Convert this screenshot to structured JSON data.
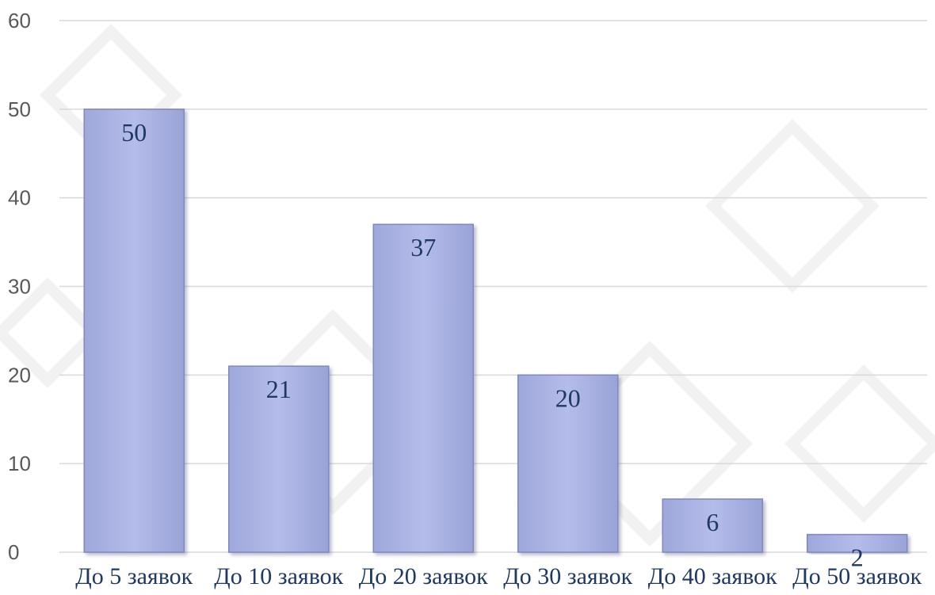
{
  "chart_data": {
    "type": "bar",
    "categories": [
      "До 5 заявок",
      "До 10 заявок",
      "До 20 заявок",
      "До 30 заявок",
      "До 40 заявок",
      "До 50 заявок"
    ],
    "values": [
      50,
      21,
      37,
      20,
      6,
      2
    ],
    "data_labels": [
      "50",
      "21",
      "37",
      "20",
      "6",
      "2"
    ],
    "title": "",
    "xlabel": "",
    "ylabel": "",
    "ylim": [
      0,
      60
    ],
    "yticks": [
      "0",
      "10",
      "20",
      "30",
      "40",
      "50",
      "60"
    ],
    "ytick_values": [
      0,
      10,
      20,
      30,
      40,
      50,
      60
    ],
    "grid": true,
    "legend": "none"
  },
  "colors": {
    "bar_fill_top": "#b9c1ec",
    "bar_fill_bottom": "#9ea8da",
    "bar_edge": "#7f89bf",
    "gridline": "#d9d9d9",
    "label_text": "#1f3864",
    "axis_text": "#595959",
    "background_ornament": "#f2f2f2"
  }
}
